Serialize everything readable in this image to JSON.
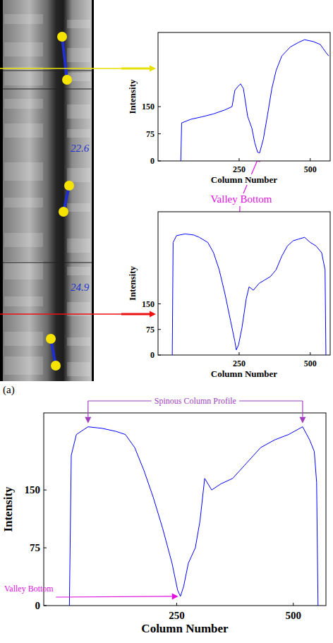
{
  "figure_label": "(a)",
  "image": {
    "angles": [
      22.6,
      24.9
    ]
  },
  "annotations": [
    "Valley Bottom"
  ],
  "chart_data": [
    {
      "type": "line",
      "color": "#0000ff",
      "xlabel": "Column Number",
      "ylabel": "Intensity",
      "xlim": [
        -35,
        570
      ],
      "ylim": [
        0,
        355
      ],
      "xticks": [
        250,
        500
      ],
      "yticks": [
        0,
        75,
        150
      ],
      "x": [
        45,
        48,
        80,
        120,
        160,
        200,
        225,
        235,
        245,
        255,
        265,
        280,
        295,
        305,
        315,
        322,
        335,
        350,
        365,
        380,
        400,
        430,
        460,
        480,
        510,
        535,
        555,
        565
      ],
      "values": [
        0,
        105,
        115,
        122,
        130,
        141,
        150,
        195,
        205,
        213,
        200,
        123,
        90,
        50,
        24,
        22,
        60,
        128,
        200,
        250,
        290,
        315,
        328,
        335,
        330,
        322,
        300,
        290
      ]
    },
    {
      "type": "line",
      "color": "#0000ff",
      "xlabel": "Column Number",
      "ylabel": "Intensity",
      "xlim": [
        -35,
        570
      ],
      "ylim": [
        0,
        420
      ],
      "xticks": [
        250,
        500
      ],
      "yticks": [
        0,
        75,
        150
      ],
      "x": [
        15,
        18,
        30,
        60,
        90,
        110,
        140,
        160,
        180,
        200,
        220,
        235,
        240,
        248,
        260,
        275,
        285,
        300,
        320,
        340,
        360,
        380,
        400,
        420,
        440,
        460,
        480,
        500,
        520,
        540,
        552,
        555
      ],
      "values": [
        0,
        330,
        350,
        355,
        352,
        345,
        330,
        300,
        250,
        180,
        100,
        40,
        15,
        30,
        80,
        165,
        200,
        190,
        210,
        220,
        230,
        250,
        290,
        320,
        335,
        340,
        345,
        330,
        320,
        300,
        250,
        0
      ]
    },
    {
      "type": "line",
      "color": "#0000ff",
      "xlabel": "Column Number",
      "ylabel": "Intensity",
      "xlim": [
        -35,
        570
      ],
      "ylim": [
        0,
        250
      ],
      "xticks": [
        250,
        500
      ],
      "yticks": [
        0,
        75,
        150
      ],
      "annotations": [
        "Spinous Column Profile",
        "Valley Bottom"
      ],
      "x": [
        20,
        24,
        35,
        60,
        90,
        120,
        140,
        160,
        180,
        200,
        220,
        240,
        252,
        258,
        265,
        275,
        290,
        300,
        310,
        325,
        345,
        370,
        400,
        430,
        460,
        490,
        520,
        535,
        545,
        550,
        553
      ],
      "values": [
        0,
        195,
        222,
        232,
        230,
        226,
        222,
        205,
        175,
        140,
        100,
        55,
        20,
        12,
        25,
        55,
        75,
        110,
        165,
        150,
        158,
        165,
        185,
        205,
        215,
        222,
        232,
        215,
        200,
        160,
        0
      ]
    }
  ]
}
